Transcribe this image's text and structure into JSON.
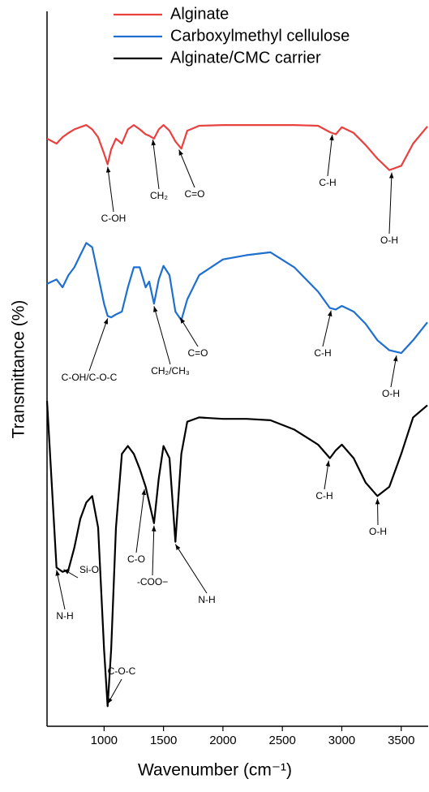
{
  "chart_data": {
    "type": "line",
    "xlabel": "Wavenumber (cm⁻¹)",
    "ylabel": "Transmittance (%)",
    "xlim": [
      520,
      3720
    ],
    "ylim": [
      0,
      100
    ],
    "xticks": [
      1000,
      1500,
      2000,
      2500,
      3000,
      3500
    ],
    "legend": "upper center",
    "x": [
      520,
      600,
      650,
      700,
      750,
      800,
      850,
      900,
      950,
      1000,
      1030,
      1060,
      1100,
      1150,
      1200,
      1250,
      1300,
      1350,
      1380,
      1420,
      1460,
      1500,
      1550,
      1600,
      1650,
      1700,
      1800,
      2000,
      2200,
      2400,
      2600,
      2800,
      2900,
      2950,
      3000,
      3100,
      3200,
      3300,
      3400,
      3500,
      3600,
      3720
    ],
    "series": [
      {
        "name": "Alginate",
        "color": "#e8413f",
        "values": [
          82.2,
          81.5,
          82.4,
          83.0,
          83.5,
          83.8,
          84.1,
          83.5,
          82.4,
          80.1,
          78.6,
          80.7,
          82.2,
          81.5,
          83.5,
          84.1,
          83.5,
          82.8,
          82.6,
          82.2,
          83.5,
          84.1,
          83.3,
          81.8,
          80.8,
          83.3,
          84.0,
          84.1,
          84.1,
          84.1,
          84.1,
          84.0,
          83.1,
          82.8,
          83.8,
          83.0,
          81.3,
          79.4,
          77.8,
          78.4,
          81.5,
          83.9
        ]
      },
      {
        "name": "Carboxylmethyl cellulose",
        "color": "#1f6fd1",
        "values": [
          61.9,
          62.5,
          61.4,
          63.1,
          64.2,
          65.9,
          67.6,
          67.0,
          63.1,
          59.1,
          57.4,
          57.2,
          57.6,
          58.0,
          61.4,
          64.2,
          64.2,
          61.4,
          62.2,
          59.1,
          62.5,
          64.4,
          63.1,
          58.0,
          56.8,
          59.7,
          63.1,
          65.3,
          65.9,
          66.3,
          64.2,
          60.8,
          58.5,
          58.3,
          58.8,
          58.0,
          56.3,
          54.0,
          52.6,
          52.2,
          54.0,
          56.5
        ]
      },
      {
        "name": "Alginate/CMC carrier",
        "color": "#000000",
        "values": [
          45.5,
          22.2,
          21.6,
          21.9,
          25.0,
          29.0,
          31.3,
          32.2,
          27.8,
          10.8,
          2.8,
          10.8,
          27.8,
          38.1,
          39.2,
          38.1,
          36.0,
          33.5,
          31.3,
          28.4,
          34.7,
          39.2,
          37.5,
          25.8,
          38.1,
          42.6,
          43.2,
          43.0,
          43.0,
          42.8,
          41.5,
          39.4,
          37.5,
          38.6,
          39.4,
          37.5,
          34.1,
          32.2,
          33.5,
          38.1,
          43.2,
          44.9
        ]
      }
    ],
    "annotations": [
      {
        "text": "C-OH",
        "x": 1030,
        "y": 78.6
      },
      {
        "text": "CH₂",
        "x": 1410,
        "y": 82.4
      },
      {
        "text": "C=O",
        "x": 1630,
        "y": 81.0
      },
      {
        "text": "C-H",
        "x": 2920,
        "y": 83.1
      },
      {
        "text": "O-H",
        "x": 3420,
        "y": 77.8
      },
      {
        "text": "C-OH/C-O-C",
        "x": 1030,
        "y": 57.4
      },
      {
        "text": "CH₂/CH₃",
        "x": 1420,
        "y": 59.1
      },
      {
        "text": "C=O",
        "x": 1640,
        "y": 57.5
      },
      {
        "text": "C-H",
        "x": 2910,
        "y": 58.5
      },
      {
        "text": "O-H",
        "x": 3460,
        "y": 52.2
      },
      {
        "text": "N-H",
        "x": 600,
        "y": 22.2
      },
      {
        "text": "Si-O",
        "x": 660,
        "y": 21.6
      },
      {
        "text": "C-O-C",
        "x": 1030,
        "y": 2.8
      },
      {
        "text": "C-O",
        "x": 1340,
        "y": 33.5
      },
      {
        "text": "-COO−",
        "x": 1420,
        "y": 28.4
      },
      {
        "text": "N-H",
        "x": 1600,
        "y": 25.8
      },
      {
        "text": "C-H",
        "x": 2890,
        "y": 37.5
      },
      {
        "text": "O-H",
        "x": 3300,
        "y": 32.2
      }
    ]
  }
}
